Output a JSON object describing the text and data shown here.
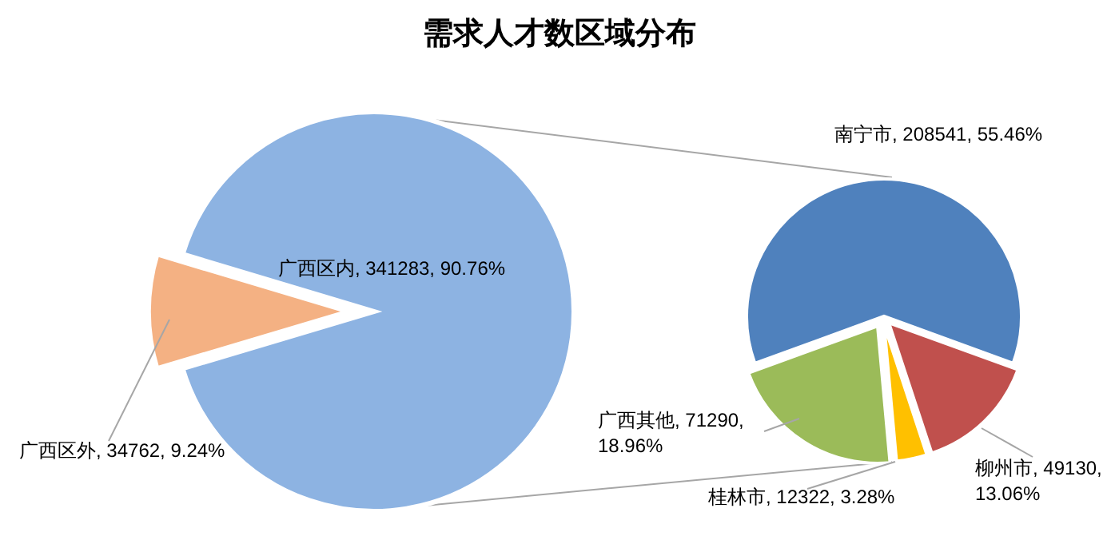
{
  "chart_data": [
    {
      "type": "pie",
      "title": "需求人才数区域分布",
      "categories": [
        "广西区内",
        "广西区外"
      ],
      "values": [
        341283,
        34762
      ],
      "colors": [
        "#8db3e2",
        "#f4b183"
      ],
      "value_labels": [
        "341283, 90.76%",
        "34762, 9.24%"
      ]
    },
    {
      "type": "pie",
      "categories": [
        "南宁市",
        "柳州市",
        "桂林市",
        "广西其他"
      ],
      "values": [
        208541,
        49130,
        12322,
        71290
      ],
      "colors": [
        "#4f81bd",
        "#c0504d",
        "#ffc000",
        "#9bbb59"
      ],
      "value_labels": [
        "208541, 55.46%",
        "49130, 13.06%",
        "12322, 3.28%",
        "71290, 18.96%"
      ]
    }
  ]
}
